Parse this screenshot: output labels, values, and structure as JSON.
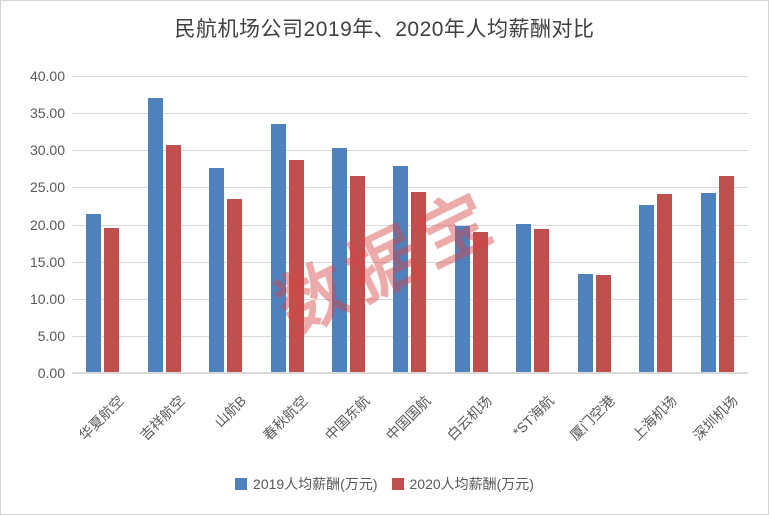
{
  "watermark": {
    "text": "数据宝",
    "color": "rgba(216,66,66,0.45)"
  },
  "colors": {
    "series_2019": "#4f81bd",
    "series_2020": "#c0504d",
    "grid": "#d9d9d9",
    "axis_text": "#595959",
    "title_text": "#404040",
    "frame_border": "#d4d4d4"
  },
  "legend": {
    "items": [
      {
        "label": "2019人均薪酬(万元)",
        "color": "#4f81bd"
      },
      {
        "label": "2020人均薪酬(万元)",
        "color": "#c0504d"
      }
    ]
  },
  "chart_data": {
    "type": "bar",
    "title": "民航机场公司2019年、2020年人均薪酬对比",
    "categories": [
      "华夏航空",
      "吉祥航空",
      "山航B",
      "春秋航空",
      "中国东航",
      "中国国航",
      "白云机场",
      "*ST海航",
      "厦门空港",
      "上海机场",
      "深圳机场"
    ],
    "series": [
      {
        "name": "2019人均薪酬(万元)",
        "color": "#4f81bd",
        "values": [
          21.3,
          36.9,
          27.5,
          33.4,
          30.2,
          27.8,
          19.7,
          19.9,
          13.2,
          22.5,
          24.1
        ]
      },
      {
        "name": "2020人均薪酬(万元)",
        "color": "#c0504d",
        "values": [
          19.4,
          30.6,
          23.3,
          28.6,
          26.4,
          24.2,
          18.9,
          19.2,
          13.1,
          24.0,
          26.4
        ]
      }
    ],
    "xlabel": "",
    "ylabel": "",
    "ylim": [
      0,
      40
    ],
    "ytick_step": 5,
    "ytick_decimals": 2,
    "grid": true,
    "x_tick_rotation": 45,
    "legend_position": "bottom"
  }
}
